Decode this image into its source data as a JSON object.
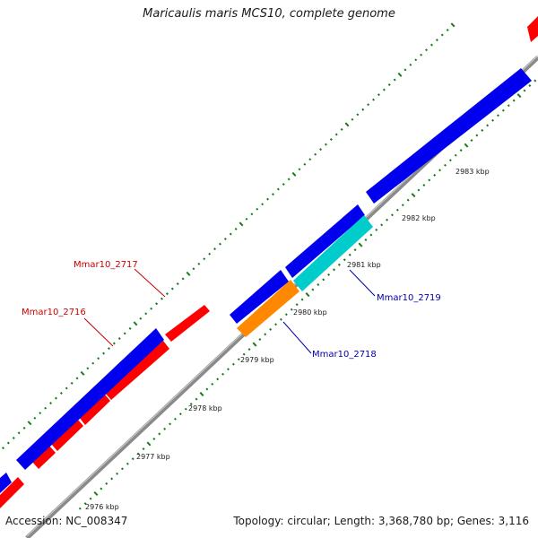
{
  "title": "Maricaulis maris MCS10, complete genome",
  "footer": {
    "accession": "Accession: NC_008347",
    "summary": "Topology: circular; Length: 3,368,780 bp; Genes: 3,116"
  },
  "colors": {
    "forward_cds": "#ff0000",
    "reverse_cds": "#0000ff",
    "highlight_orange": "#ff8800",
    "highlight_cyan": "#00cccc",
    "backbone": "#888888",
    "tick": "#1a7a1a",
    "forward_label": "#cc0000",
    "reverse_label": "#0000aa"
  },
  "scale_ticks": [
    {
      "label": "2976 kbp"
    },
    {
      "label": "2977 kbp"
    },
    {
      "label": "2978 kbp"
    },
    {
      "label": "2979 kbp"
    },
    {
      "label": "2980 kbp"
    },
    {
      "label": "2981 kbp"
    },
    {
      "label": "2982 kbp"
    },
    {
      "label": "2983 kbp"
    }
  ],
  "gene_labels": [
    {
      "name": "Mmar10_2717",
      "strand": "forward"
    },
    {
      "name": "Mmar10_2716",
      "strand": "forward"
    },
    {
      "name": "Mmar10_2719",
      "strand": "reverse"
    },
    {
      "name": "Mmar10_2718",
      "strand": "reverse"
    }
  ]
}
